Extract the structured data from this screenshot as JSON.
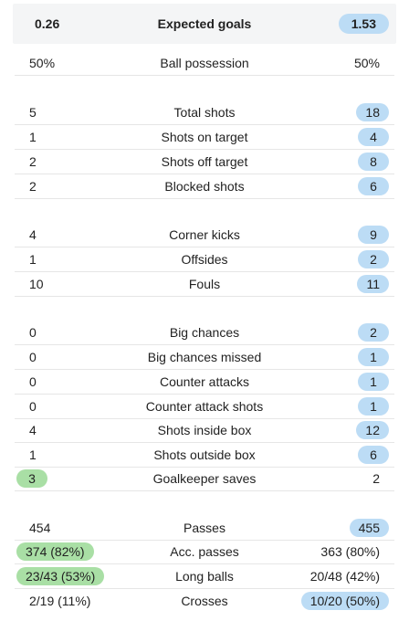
{
  "xg": {
    "home": "0.26",
    "label": "Expected goals",
    "away": "1.53"
  },
  "rows": [
    {
      "home": "50%",
      "label": "Ball possession",
      "away": "50%"
    },
    {
      "home": "5",
      "label": "Total shots",
      "away": "18"
    },
    {
      "home": "1",
      "label": "Shots on target",
      "away": "4"
    },
    {
      "home": "2",
      "label": "Shots off target",
      "away": "8"
    },
    {
      "home": "2",
      "label": "Blocked shots",
      "away": "6"
    },
    {
      "home": "4",
      "label": "Corner kicks",
      "away": "9"
    },
    {
      "home": "1",
      "label": "Offsides",
      "away": "2"
    },
    {
      "home": "10",
      "label": "Fouls",
      "away": "11"
    },
    {
      "home": "0",
      "label": "Big chances",
      "away": "2"
    },
    {
      "home": "0",
      "label": "Big chances missed",
      "away": "1"
    },
    {
      "home": "0",
      "label": "Counter attacks",
      "away": "1"
    },
    {
      "home": "0",
      "label": "Counter attack shots",
      "away": "1"
    },
    {
      "home": "4",
      "label": "Shots inside box",
      "away": "12"
    },
    {
      "home": "1",
      "label": "Shots outside box",
      "away": "6"
    },
    {
      "home": "3",
      "label": "Goalkeeper saves",
      "away": "2"
    },
    {
      "home": "454",
      "label": "Passes",
      "away": "455"
    },
    {
      "home": "374 (82%)",
      "label": "Acc. passes",
      "away": "363 (80%)"
    },
    {
      "home": "23/43 (53%)",
      "label": "Long balls",
      "away": "20/48 (42%)"
    },
    {
      "home": "2/19 (11%)",
      "label": "Crosses",
      "away": "10/20 (50%)"
    }
  ],
  "colors": {
    "home_highlight": "#a9dfa5",
    "away_highlight": "#bcdcf5",
    "header_bg": "#f4f5f6"
  }
}
